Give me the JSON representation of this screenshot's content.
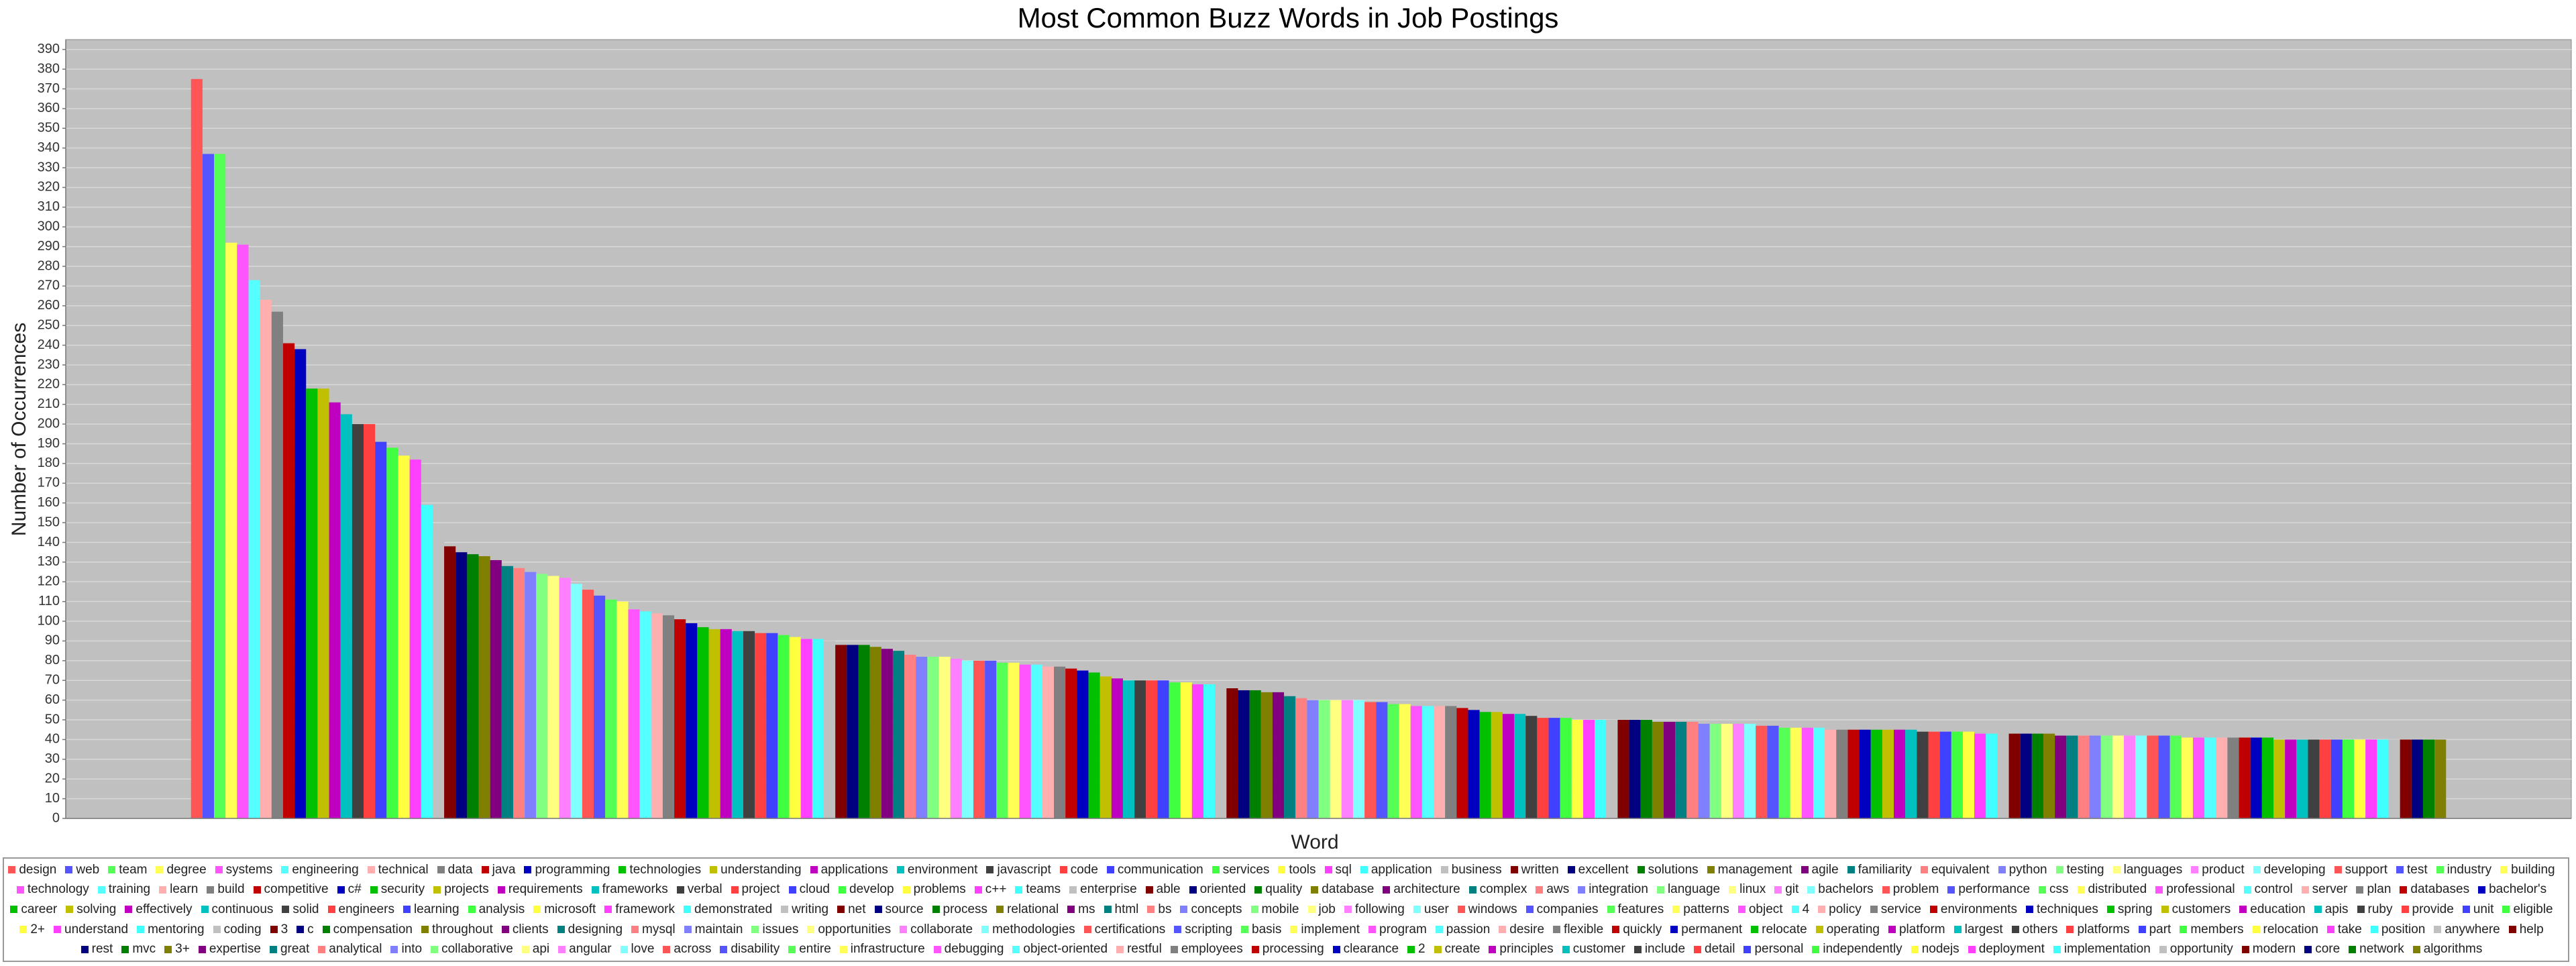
{
  "chart_data": {
    "type": "bar",
    "title": "Most Common Buzz Words in Job Postings",
    "x_label": "Word",
    "y_label": "Number of Occurrences",
    "categories": [
      "design",
      "web",
      "team",
      "degree",
      "systems",
      "engineering",
      "technical",
      "data",
      "java",
      "programming",
      "technologies",
      "understanding",
      "applications",
      "environment",
      "javascript",
      "code",
      "communication",
      "services",
      "tools",
      "sql",
      "application",
      "business",
      "written",
      "excellent",
      "solutions",
      "management",
      "agile",
      "familiarity",
      "equivalent",
      "python",
      "testing",
      "languages",
      "product",
      "developing",
      "support",
      "test",
      "industry",
      "building",
      "technology",
      "training",
      "learn",
      "build",
      "competitive",
      "c#",
      "security",
      "projects",
      "requirements",
      "frameworks",
      "verbal",
      "project",
      "cloud",
      "develop",
      "problems",
      "c++",
      "teams",
      "enterprise",
      "able",
      "oriented",
      "quality",
      "database",
      "architecture",
      "complex",
      "aws",
      "integration",
      "language",
      "linux",
      "git",
      "bachelors",
      "problem",
      "performance",
      "css",
      "distributed",
      "professional",
      "control",
      "server",
      "plan",
      "databases",
      "bachelor's",
      "career",
      "solving",
      "effectively",
      "continuous",
      "solid",
      "engineers",
      "learning",
      "analysis",
      "microsoft",
      "framework",
      "demonstrated",
      "writing",
      "net",
      "source",
      "process",
      "relational",
      "ms",
      "html",
      "bs",
      "concepts",
      "mobile",
      "job",
      "following",
      "user",
      "windows",
      "companies",
      "features",
      "patterns",
      "object",
      "4",
      "policy",
      "service",
      "environments",
      "techniques",
      "spring",
      "customers",
      "education",
      "apis",
      "ruby",
      "provide",
      "unit",
      "eligible",
      "2+",
      "understand",
      "mentoring",
      "coding",
      "3",
      "c",
      "compensation",
      "throughout",
      "clients",
      "designing",
      "mysql",
      "maintain",
      "issues",
      "opportunities",
      "collaborate",
      "methodologies",
      "certifications",
      "scripting",
      "basis",
      "implement",
      "program",
      "passion",
      "desire",
      "flexible",
      "quickly",
      "permanent",
      "relocate",
      "operating",
      "platform",
      "largest",
      "others",
      "platforms",
      "part",
      "members",
      "relocation",
      "take",
      "position",
      "anywhere",
      "help",
      "rest",
      "mvc",
      "3+",
      "expertise",
      "great",
      "analytical",
      "into",
      "collaborative",
      "api",
      "angular",
      "love",
      "across",
      "disability",
      "entire",
      "infrastructure",
      "debugging",
      "object-oriented",
      "restful",
      "employees",
      "processing",
      "clearance",
      "2",
      "create",
      "principles",
      "customer",
      "include",
      "detail",
      "personal",
      "independently",
      "nodejs",
      "deployment",
      "implementation",
      "opportunity",
      "modern",
      "core",
      "network",
      "algorithms"
    ],
    "values": [
      375,
      337,
      337,
      292,
      291,
      273,
      263,
      257,
      241,
      238,
      218,
      218,
      211,
      205,
      200,
      200,
      191,
      188,
      184,
      182,
      159,
      144,
      138,
      135,
      134,
      133,
      131,
      128,
      127,
      125,
      124,
      123,
      122,
      119,
      116,
      113,
      111,
      110,
      106,
      105,
      104,
      103,
      101,
      99,
      97,
      96,
      96,
      95,
      95,
      94,
      94,
      93,
      92,
      91,
      91,
      90,
      88,
      88,
      88,
      87,
      86,
      85,
      83,
      82,
      82,
      82,
      81,
      80,
      80,
      80,
      79,
      79,
      78,
      78,
      77,
      77,
      76,
      75,
      74,
      72,
      71,
      70,
      70,
      70,
      70,
      69,
      69,
      68,
      68,
      66,
      66,
      65,
      65,
      64,
      64,
      62,
      61,
      60,
      60,
      60,
      60,
      60,
      59,
      59,
      58,
      58,
      57,
      57,
      57,
      57,
      56,
      55,
      54,
      54,
      53,
      53,
      52,
      51,
      51,
      51,
      50,
      50,
      50,
      50,
      50,
      50,
      50,
      49,
      49,
      49,
      49,
      48,
      48,
      48,
      48,
      48,
      47,
      47,
      46,
      46,
      46,
      46,
      45,
      45,
      45,
      45,
      45,
      45,
      45,
      45,
      44,
      44,
      44,
      44,
      44,
      43,
      43,
      43,
      43,
      43,
      43,
      43,
      42,
      42,
      42,
      42,
      42,
      42,
      42,
      42,
      42,
      42,
      42,
      41,
      41,
      41,
      41,
      41,
      41,
      41,
      41,
      40,
      40,
      40,
      40,
      40,
      40,
      40,
      40,
      40,
      40,
      40,
      40,
      40,
      40,
      40
    ],
    "colors": [
      "#ff5555",
      "#5555ff",
      "#55ff55",
      "#ffff55",
      "#ff55ff",
      "#55ffff",
      "#ffafaf",
      "#808080",
      "#c00000",
      "#0000c0",
      "#00c000",
      "#c0c000",
      "#c000c0",
      "#00c0c0",
      "#404040",
      "#ff4040",
      "#4040ff",
      "#40ff40",
      "#ffff40",
      "#ff40ff",
      "#40ffff",
      "#c0c0c0",
      "#800000",
      "#000080",
      "#008000",
      "#808000",
      "#800080",
      "#008080",
      "#ff8080",
      "#8080ff",
      "#80ff80",
      "#ffff80",
      "#ff80ff",
      "#80ffff"
    ],
    "ylim": [
      0,
      395
    ],
    "yticks": [
      0,
      10,
      20,
      30,
      40,
      50,
      60,
      70,
      80,
      90,
      100,
      110,
      120,
      130,
      140,
      150,
      160,
      170,
      180,
      190,
      200,
      210,
      220,
      230,
      240,
      250,
      260,
      270,
      280,
      290,
      300,
      310,
      320,
      330,
      340,
      350,
      360,
      370,
      380,
      390
    ],
    "grid": true,
    "legend": "bottom"
  }
}
